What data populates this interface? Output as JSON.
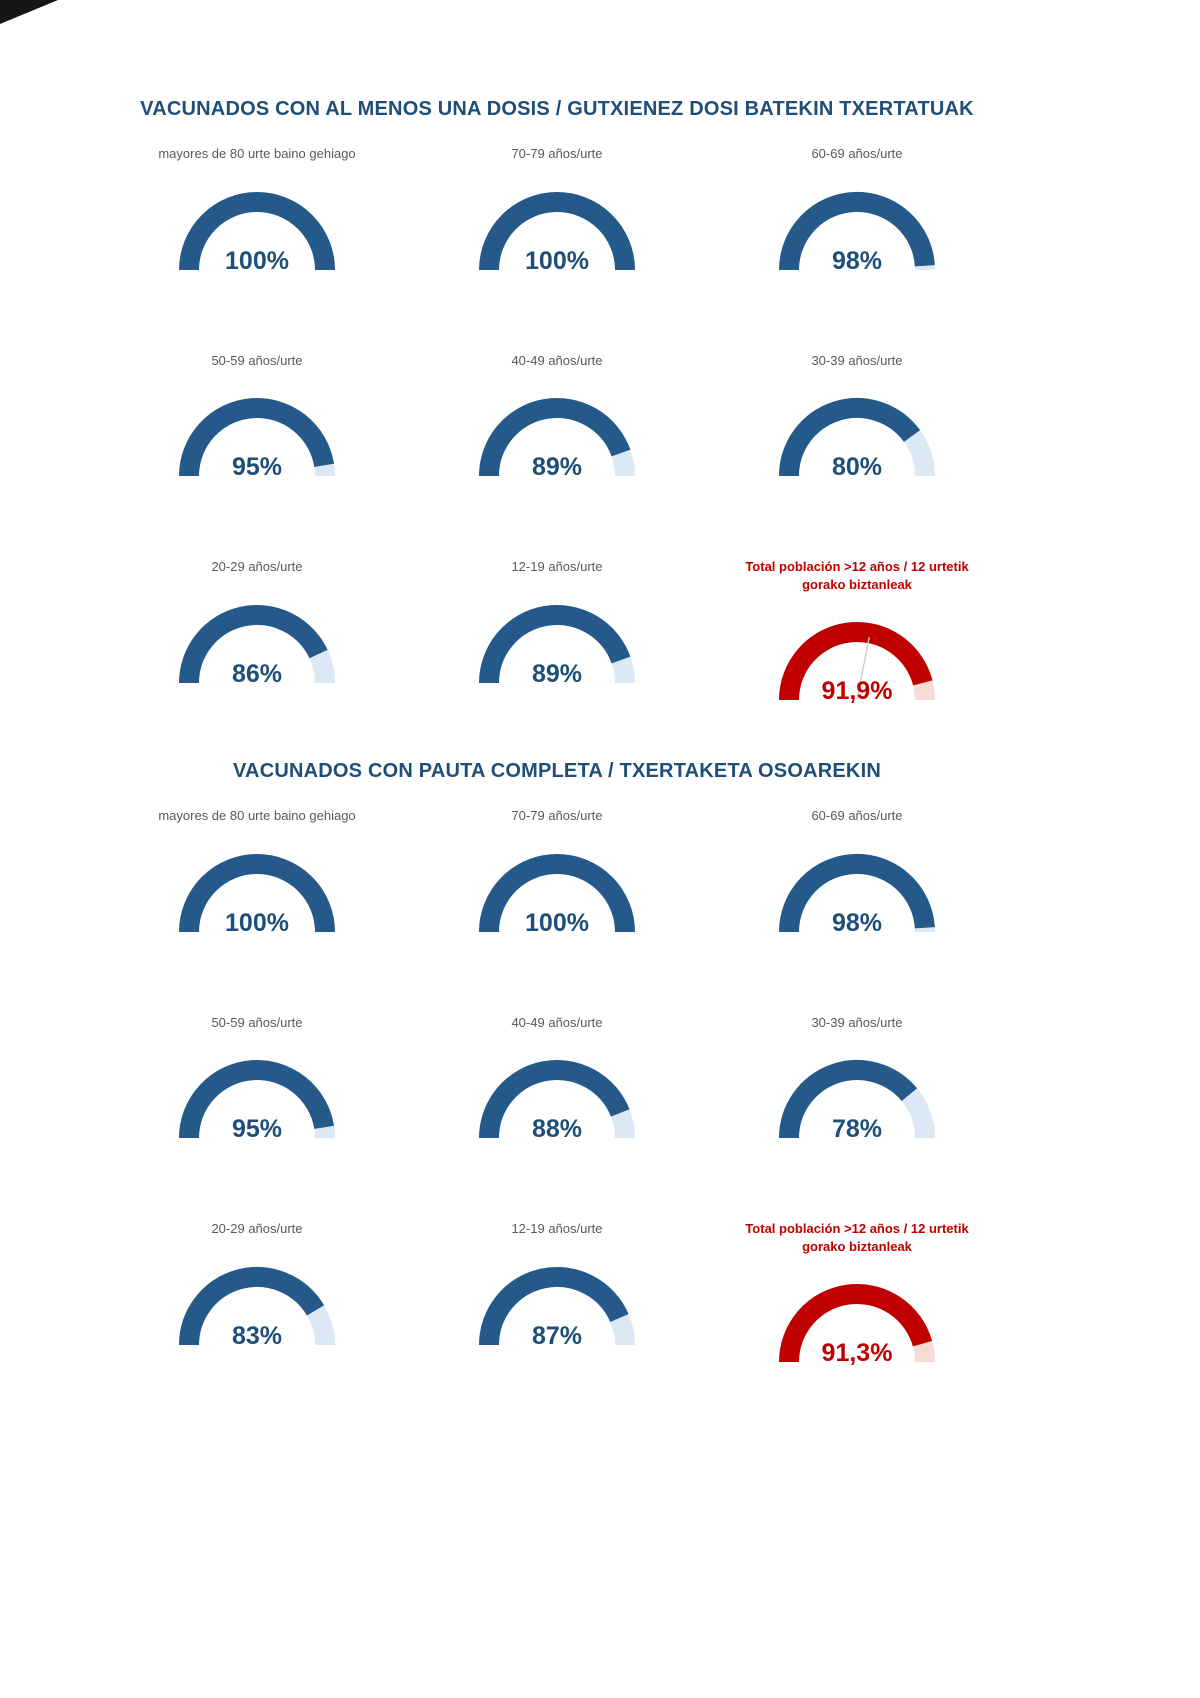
{
  "colors": {
    "navy": "#1F4E79",
    "arc": "#25598A",
    "track": "#DCE8F5",
    "total_arc": "#C00000",
    "total_track": "#F7DCD6",
    "label_gray": "#595959",
    "needle": "#C9CED4"
  },
  "chart_data": [
    {
      "type": "gauge",
      "title": "VACUNADOS CON AL MENOS UNA DOSIS / GUTXIENEZ DOSI BATEKIN TXERTATUAK",
      "unit": "%",
      "min": 0,
      "max": 100,
      "layout": "3x3 semicircular gauges, filled arc dark blue over light track, totals in red",
      "gauges": [
        {
          "label": "mayores de 80 urte baino gehiago",
          "value": 100,
          "display": "100%",
          "color": "blue"
        },
        {
          "label": "70-79 años/urte",
          "value": 100,
          "display": "100%",
          "color": "blue"
        },
        {
          "label": "60-69 años/urte",
          "value": 98,
          "display": "98%",
          "color": "blue"
        },
        {
          "label": "50-59 años/urte",
          "value": 95,
          "display": "95%",
          "color": "blue"
        },
        {
          "label": "40-49 años/urte",
          "value": 89,
          "display": "89%",
          "color": "blue"
        },
        {
          "label": "30-39 años/urte",
          "value": 80,
          "display": "80%",
          "color": "blue"
        },
        {
          "label": "20-29 años/urte",
          "value": 86,
          "display": "86%",
          "color": "blue"
        },
        {
          "label": "12-19 años/urte",
          "value": 89,
          "display": "89%",
          "color": "blue"
        },
        {
          "label": "Total población >12 años / 12 urtetik gorako biztanleak",
          "value": 91.9,
          "display": "91,9%",
          "color": "red",
          "needle": true
        }
      ]
    },
    {
      "type": "gauge",
      "title": "VACUNADOS CON PAUTA COMPLETA / TXERTAKETA OSOAREKIN",
      "unit": "%",
      "min": 0,
      "max": 100,
      "layout": "3x3 semicircular gauges, filled arc dark blue over light track, totals in red",
      "gauges": [
        {
          "label": "mayores de 80 urte baino gehiago",
          "value": 100,
          "display": "100%",
          "color": "blue"
        },
        {
          "label": "70-79 años/urte",
          "value": 100,
          "display": "100%",
          "color": "blue"
        },
        {
          "label": "60-69 años/urte",
          "value": 98,
          "display": "98%",
          "color": "blue"
        },
        {
          "label": "50-59 años/urte",
          "value": 95,
          "display": "95%",
          "color": "blue"
        },
        {
          "label": "40-49 años/urte",
          "value": 88,
          "display": "88%",
          "color": "blue"
        },
        {
          "label": "30-39 años/urte",
          "value": 78,
          "display": "78%",
          "color": "blue"
        },
        {
          "label": "20-29 años/urte",
          "value": 83,
          "display": "83%",
          "color": "blue"
        },
        {
          "label": "12-19 años/urte",
          "value": 87,
          "display": "87%",
          "color": "blue"
        },
        {
          "label": "Total población >12 años / 12 urtetik gorako biztanleak",
          "value": 91.3,
          "display": "91,3%",
          "color": "red"
        }
      ]
    }
  ]
}
